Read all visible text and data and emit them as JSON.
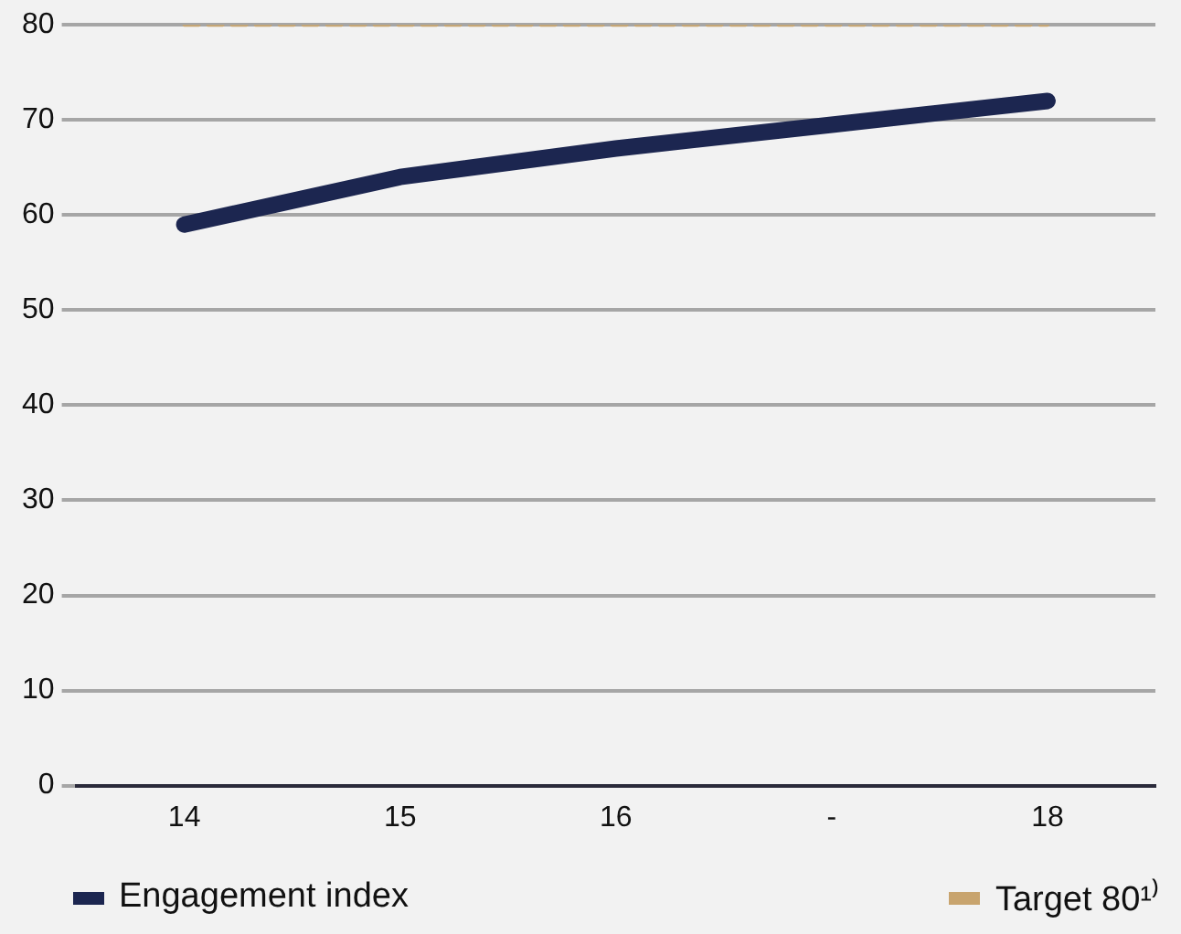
{
  "chart_data": {
    "type": "line",
    "categories": [
      "14",
      "15",
      "16",
      "-",
      "18"
    ],
    "series": [
      {
        "name": "Engagement index",
        "color": "#1c2650",
        "values": [
          59,
          64,
          67,
          69.5,
          72
        ]
      },
      {
        "name": "Target 80¹⁾",
        "color": "#c8a46e",
        "values": [
          80,
          80,
          80,
          80,
          80
        ],
        "line_style": "dashed"
      }
    ],
    "ylim": [
      0,
      80
    ],
    "yticks": [
      0,
      10,
      20,
      30,
      40,
      50,
      60,
      70,
      80
    ],
    "grid": "y",
    "legend": "bottom",
    "marker": "none"
  }
}
